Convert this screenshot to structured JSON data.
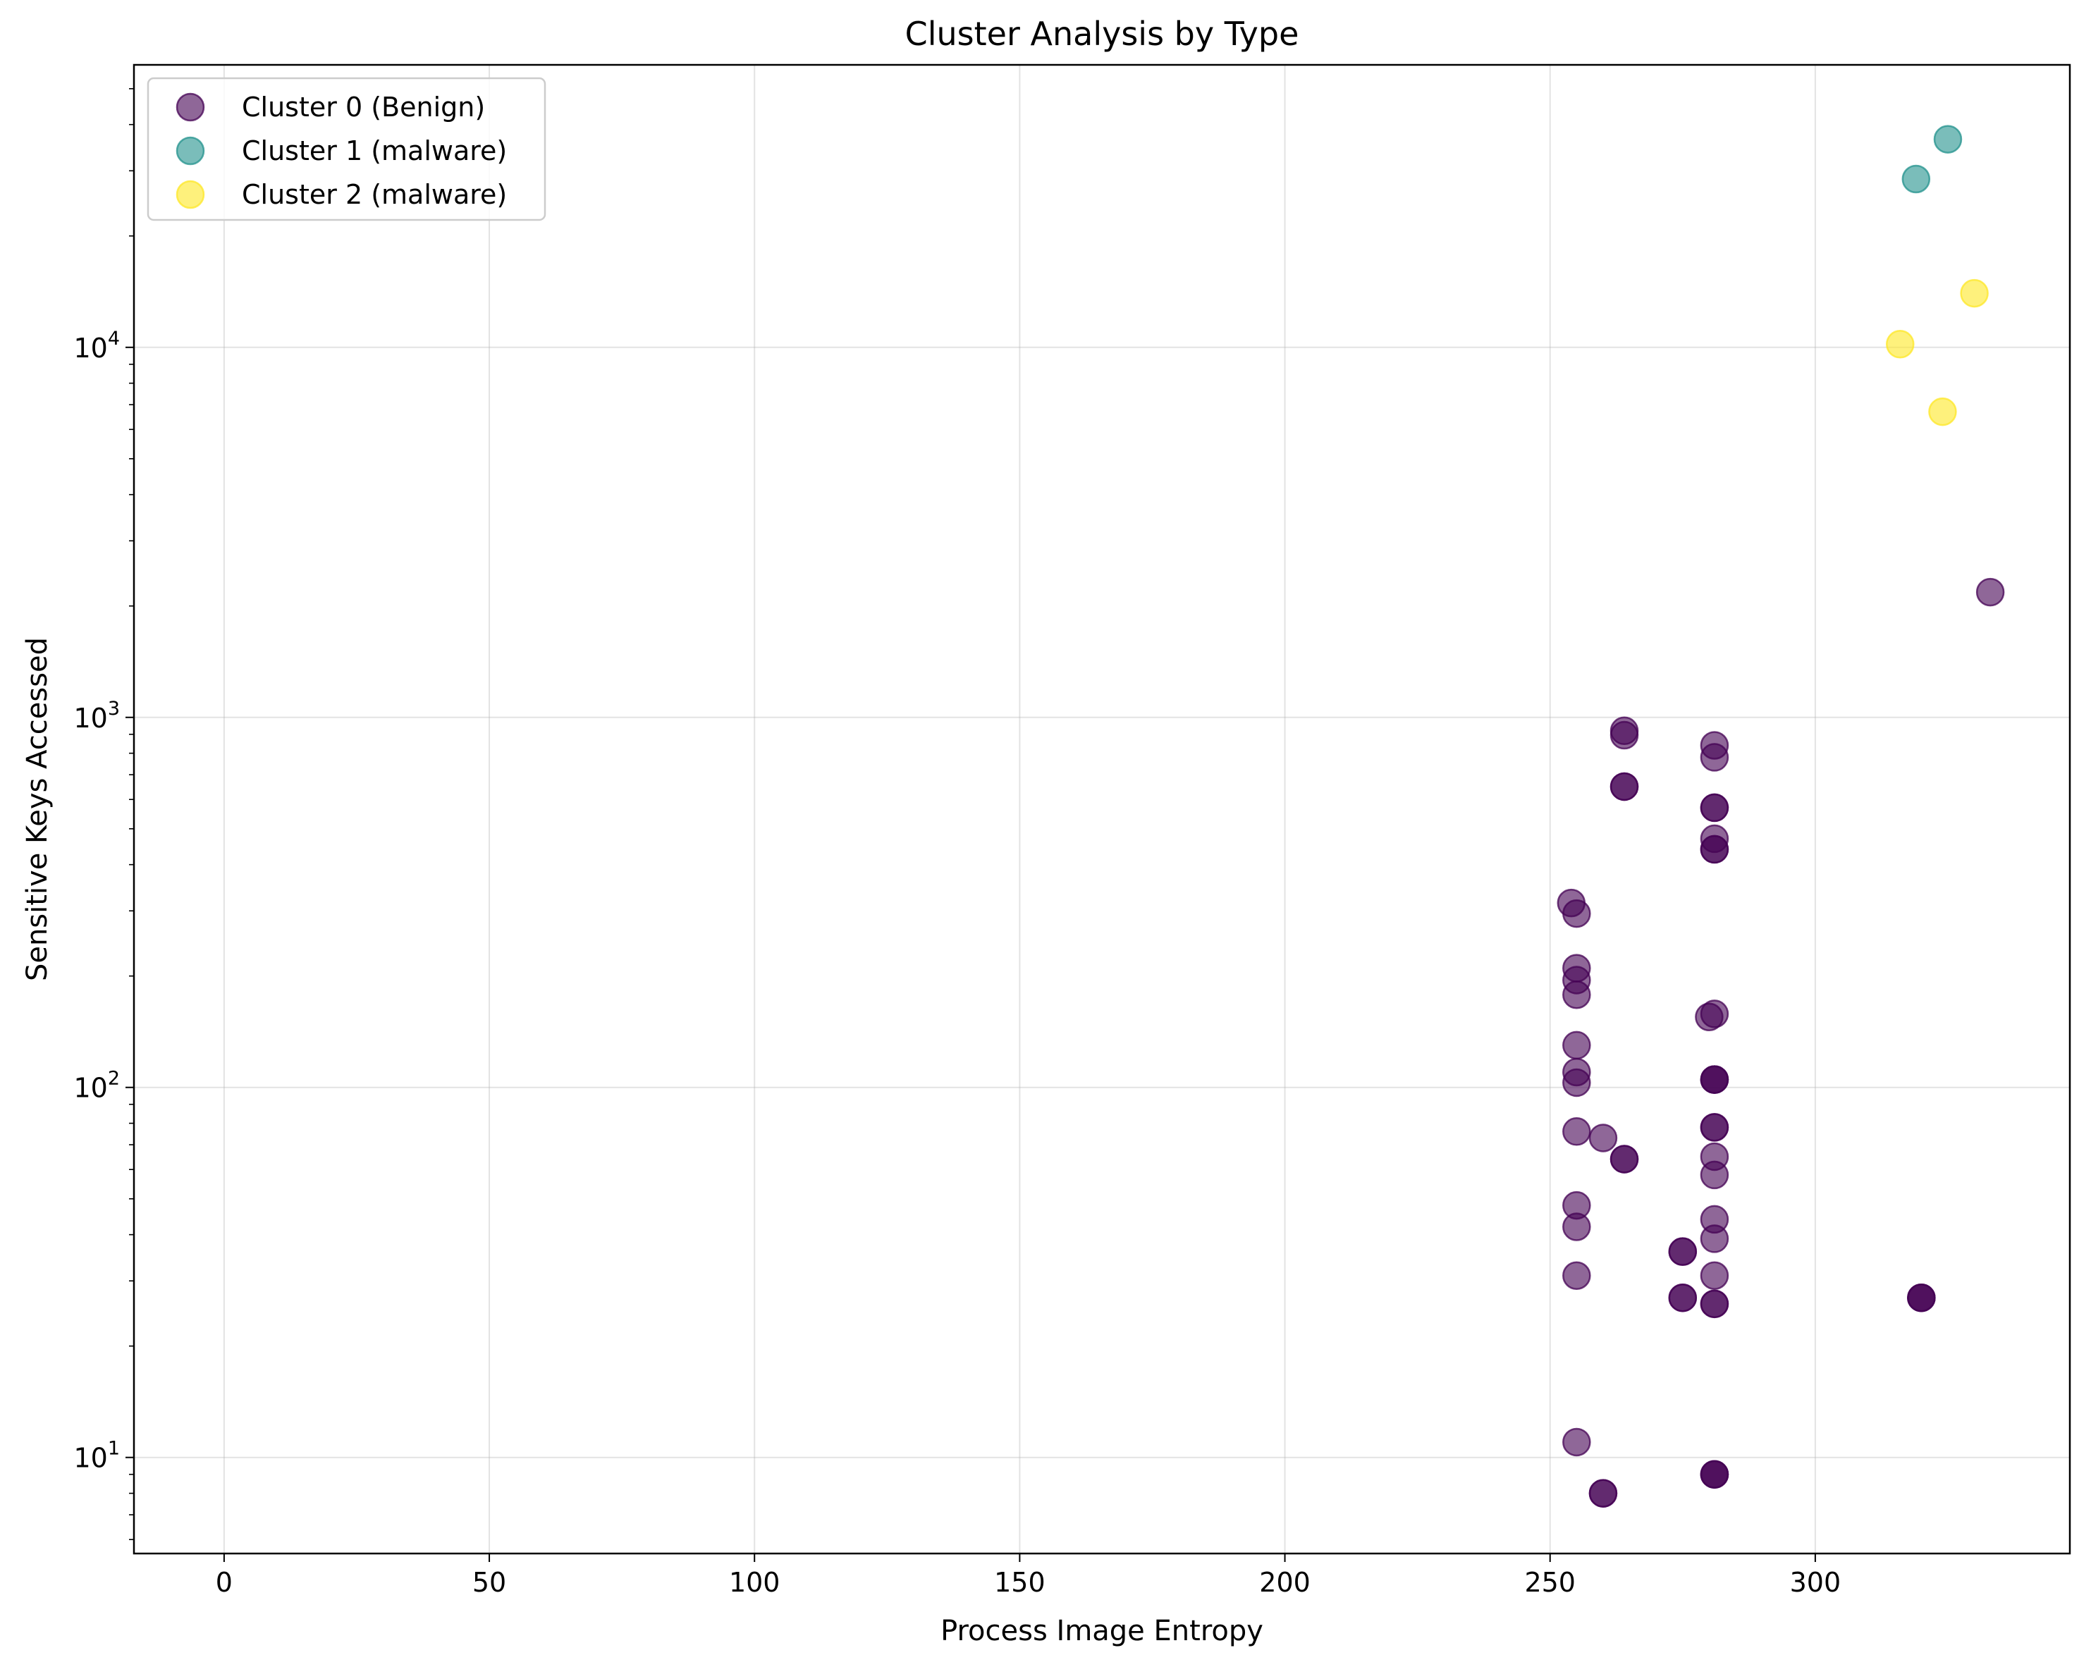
{
  "chart_data": {
    "type": "scatter",
    "title": "Cluster Analysis by Type",
    "xlabel": "Process Image Entropy",
    "ylabel": "Sensitive Keys Accessed",
    "xlim": [
      -17,
      348
    ],
    "ylim": [
      5.5,
      58000
    ],
    "yscale": "log",
    "xticks": [
      0,
      50,
      100,
      150,
      200,
      250,
      300
    ],
    "yticks": [
      {
        "value": 10,
        "base": "10",
        "exp": "1"
      },
      {
        "value": 100,
        "base": "10",
        "exp": "2"
      },
      {
        "value": 1000,
        "base": "10",
        "exp": "3"
      },
      {
        "value": 10000,
        "base": "10",
        "exp": "4"
      }
    ],
    "grid": true,
    "legend_position": "upper-left",
    "series": [
      {
        "name": "Cluster 0 (Benign)",
        "color": "#440154",
        "opacity": 0.6,
        "points": [
          [
            254,
            315
          ],
          [
            255,
            295
          ],
          [
            255,
            210
          ],
          [
            255,
            195
          ],
          [
            255,
            178
          ],
          [
            255,
            130
          ],
          [
            255,
            110
          ],
          [
            255,
            103
          ],
          [
            255,
            76
          ],
          [
            255,
            48
          ],
          [
            255,
            42
          ],
          [
            255,
            31
          ],
          [
            255,
            11
          ],
          [
            260,
            73
          ],
          [
            260,
            8
          ],
          [
            260,
            8
          ],
          [
            264,
            920
          ],
          [
            264,
            895
          ],
          [
            264,
            650
          ],
          [
            264,
            650
          ],
          [
            264,
            64
          ],
          [
            264,
            64
          ],
          [
            275,
            36
          ],
          [
            275,
            36
          ],
          [
            275,
            27
          ],
          [
            275,
            27
          ],
          [
            280,
            155
          ],
          [
            281,
            840
          ],
          [
            281,
            780
          ],
          [
            281,
            570
          ],
          [
            281,
            570
          ],
          [
            281,
            470
          ],
          [
            281,
            440
          ],
          [
            281,
            440
          ],
          [
            281,
            158
          ],
          [
            281,
            105
          ],
          [
            281,
            105
          ],
          [
            281,
            105
          ],
          [
            281,
            78
          ],
          [
            281,
            78
          ],
          [
            281,
            65
          ],
          [
            281,
            58
          ],
          [
            281,
            44
          ],
          [
            281,
            39
          ],
          [
            281,
            31
          ],
          [
            281,
            26
          ],
          [
            281,
            26
          ],
          [
            281,
            9
          ],
          [
            281,
            9
          ],
          [
            281,
            9
          ],
          [
            320,
            27
          ],
          [
            320,
            27
          ],
          [
            320,
            27
          ],
          [
            333,
            2180
          ]
        ]
      },
      {
        "name": "Cluster 1 (malware)",
        "color": "#21918c",
        "opacity": 0.6,
        "points": [
          [
            319,
            28500
          ],
          [
            325,
            36500
          ]
        ]
      },
      {
        "name": "Cluster 2 (malware)",
        "color": "#fde725",
        "opacity": 0.6,
        "points": [
          [
            316,
            10200
          ],
          [
            324,
            6700
          ],
          [
            330,
            14000
          ]
        ]
      }
    ]
  }
}
